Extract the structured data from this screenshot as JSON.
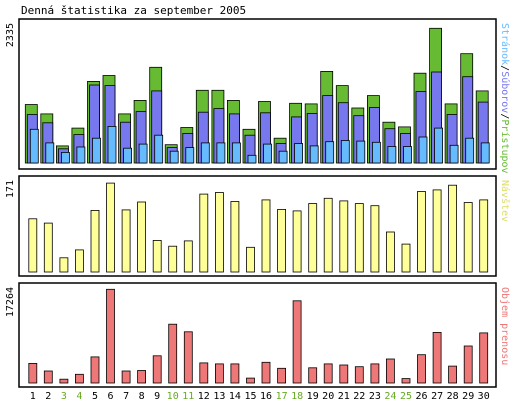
{
  "title": "Denná štatistika za september 2005",
  "colors": {
    "pristupov": "#66bb33",
    "suborov": "#7777ee",
    "stranok": "#66bbff",
    "navstev": "#ffff99",
    "objem": "#ee7777",
    "weekend": "#66aa22",
    "weekday": "#000000"
  },
  "chart_data": [
    {
      "type": "bar",
      "name": "hits-files-pages",
      "ymax_label": "2335",
      "ymax": 2335,
      "side_label_parts": [
        {
          "text": "Stránok",
          "color": "#66bbff"
        },
        {
          "text": "/",
          "color": "#000000"
        },
        {
          "text": "Súborov",
          "color": "#7777ee"
        },
        {
          "text": "/",
          "color": "#000000"
        },
        {
          "text": "Prístupov",
          "color": "#66bb33"
        }
      ],
      "series": [
        {
          "key": "pristupov",
          "values": [
            990,
            830,
            290,
            590,
            1380,
            1480,
            830,
            1060,
            1620,
            310,
            600,
            1230,
            1230,
            1060,
            570,
            1040,
            420,
            1010,
            1000,
            1550,
            1310,
            930,
            1140,
            690,
            610,
            1520,
            2280,
            1000,
            1850,
            1220
          ]
        },
        {
          "key": "suborov",
          "values": [
            820,
            680,
            240,
            480,
            1320,
            1310,
            690,
            870,
            1220,
            260,
            500,
            860,
            920,
            830,
            470,
            850,
            330,
            780,
            840,
            1140,
            1020,
            800,
            940,
            580,
            500,
            1210,
            1540,
            820,
            1460,
            1030
          ]
        },
        {
          "key": "stranok",
          "values": [
            570,
            340,
            180,
            270,
            420,
            620,
            250,
            320,
            470,
            200,
            260,
            340,
            340,
            340,
            130,
            320,
            200,
            330,
            290,
            360,
            380,
            370,
            350,
            280,
            280,
            440,
            590,
            300,
            420,
            340
          ]
        }
      ]
    },
    {
      "type": "bar",
      "name": "visits",
      "ymax_label": "171",
      "ymax": 171,
      "side_label_parts": [
        {
          "text": "Návštev",
          "color": "#dddd66"
        }
      ],
      "series": [
        {
          "key": "navstev",
          "values": [
            101,
            93,
            27,
            42,
            117,
            169,
            118,
            133,
            60,
            49,
            59,
            148,
            151,
            134,
            47,
            137,
            119,
            116,
            130,
            140,
            135,
            130,
            126,
            76,
            53,
            153,
            156,
            165,
            132,
            137
          ]
        }
      ]
    },
    {
      "type": "bar",
      "name": "volume",
      "ymax_label": "17264",
      "ymax": 17264,
      "side_label_parts": [
        {
          "text": "Objem prenosu",
          "color": "#ee7777"
        }
      ],
      "series": [
        {
          "key": "objem",
          "values": [
            3600,
            2200,
            700,
            1600,
            4800,
            17200,
            2200,
            2300,
            5000,
            10800,
            9400,
            3700,
            3500,
            3500,
            900,
            3800,
            2700,
            15100,
            2800,
            3500,
            3300,
            3000,
            3500,
            4400,
            800,
            5200,
            9300,
            3100,
            6800,
            9200
          ]
        }
      ]
    }
  ],
  "days": [
    {
      "label": "1",
      "weekend": false
    },
    {
      "label": "2",
      "weekend": false
    },
    {
      "label": "3",
      "weekend": true
    },
    {
      "label": "4",
      "weekend": true
    },
    {
      "label": "5",
      "weekend": false
    },
    {
      "label": "6",
      "weekend": false
    },
    {
      "label": "7",
      "weekend": false
    },
    {
      "label": "8",
      "weekend": false
    },
    {
      "label": "9",
      "weekend": false
    },
    {
      "label": "10",
      "weekend": true
    },
    {
      "label": "11",
      "weekend": true
    },
    {
      "label": "12",
      "weekend": false
    },
    {
      "label": "13",
      "weekend": false
    },
    {
      "label": "14",
      "weekend": false
    },
    {
      "label": "15",
      "weekend": false
    },
    {
      "label": "16",
      "weekend": false
    },
    {
      "label": "17",
      "weekend": true
    },
    {
      "label": "18",
      "weekend": true
    },
    {
      "label": "19",
      "weekend": false
    },
    {
      "label": "20",
      "weekend": false
    },
    {
      "label": "21",
      "weekend": false
    },
    {
      "label": "22",
      "weekend": false
    },
    {
      "label": "23",
      "weekend": false
    },
    {
      "label": "24",
      "weekend": true
    },
    {
      "label": "25",
      "weekend": true
    },
    {
      "label": "26",
      "weekend": false
    },
    {
      "label": "27",
      "weekend": false
    },
    {
      "label": "28",
      "weekend": false
    },
    {
      "label": "29",
      "weekend": false
    },
    {
      "label": "30",
      "weekend": false
    }
  ]
}
